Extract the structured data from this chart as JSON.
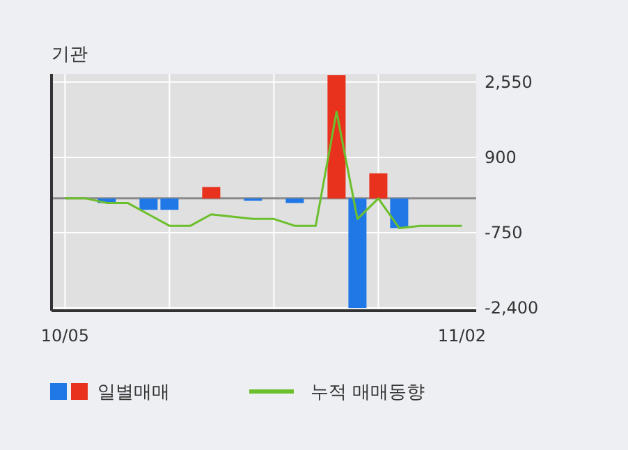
{
  "chart_data": {
    "type": "bar",
    "title": "기관",
    "categories": [
      "10/05",
      null,
      null,
      null,
      null,
      null,
      null,
      null,
      null,
      null,
      null,
      null,
      null,
      null,
      null,
      null,
      null,
      null,
      null,
      "11/02"
    ],
    "series": [
      {
        "name": "일별매매",
        "colors": [
          "#1f78e6",
          "#1f78e6",
          "#1f78e6",
          "#1f78e6",
          "#1f78e6",
          "#1f78e6",
          "#1f78e6",
          "#e8321e",
          "#1f78e6",
          "#1f78e6",
          "#1f78e6",
          "#1f78e6",
          "#1f78e6",
          "#e8321e",
          "#1f78e6",
          "#e8321e",
          "#1f78e6",
          "#1f78e6",
          "#1f78e6",
          "#1f78e6"
        ],
        "values": [
          0,
          0,
          -100,
          0,
          -250,
          -250,
          0,
          250,
          0,
          -50,
          0,
          -100,
          0,
          2700,
          -2400,
          550,
          -650,
          0,
          0,
          0
        ]
      },
      {
        "type": "line",
        "name": "누적 매매동향",
        "color": "#6cbf2c",
        "values": [
          0,
          0,
          -100,
          -100,
          -350,
          -600,
          -600,
          -350,
          -400,
          -450,
          -450,
          -600,
          -600,
          1900,
          -450,
          0,
          -650,
          -600,
          -600,
          -600
        ]
      }
    ],
    "ylim": [
      -2460,
      2730
    ],
    "yticks": [
      {
        "value": -2400,
        "label": "-2,400"
      },
      {
        "value": -750,
        "label": "-750"
      },
      {
        "value": 900,
        "label": "900"
      },
      {
        "value": 2550,
        "label": "2,550"
      }
    ],
    "ref_lines": [
      {
        "axis": "y",
        "value": 0,
        "color": "#8a8a8a"
      }
    ],
    "grid": true,
    "legend": "bottom"
  }
}
